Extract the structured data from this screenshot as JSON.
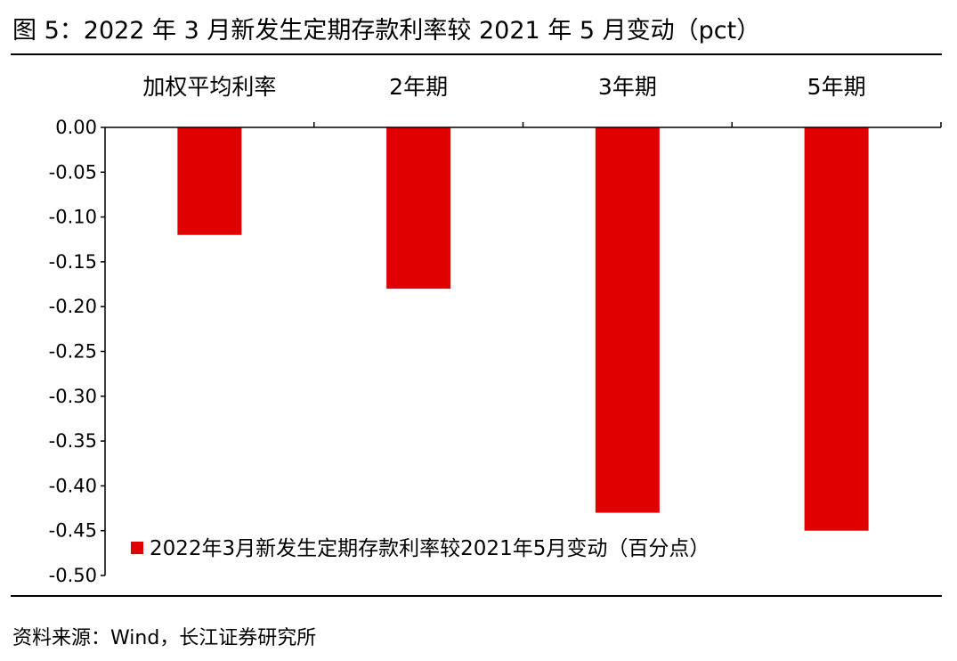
{
  "figure": {
    "title": "图  5：2022 年 3 月新发生定期存款利率较 2021 年 5 月变动（pct）",
    "source": "资料来源：Wind，长江证券研究所"
  },
  "colors": {
    "bar": "#e00000",
    "axis": "#000000"
  },
  "chart_data": {
    "type": "bar",
    "categories": [
      "加权平均利率",
      "2年期",
      "3年期",
      "5年期"
    ],
    "series": [
      {
        "name": "2022年3月新发生定期存款利率较2021年5月变动（百分点）",
        "values": [
          -0.12,
          -0.18,
          -0.43,
          -0.45
        ]
      }
    ],
    "ylim": [
      -0.5,
      0.0
    ],
    "yticks": [
      "0.00",
      "-0.05",
      "-0.10",
      "-0.15",
      "-0.20",
      "-0.25",
      "-0.30",
      "-0.35",
      "-0.40",
      "-0.45",
      "-0.50"
    ],
    "legend_position": "bottom-left",
    "grid": false
  }
}
